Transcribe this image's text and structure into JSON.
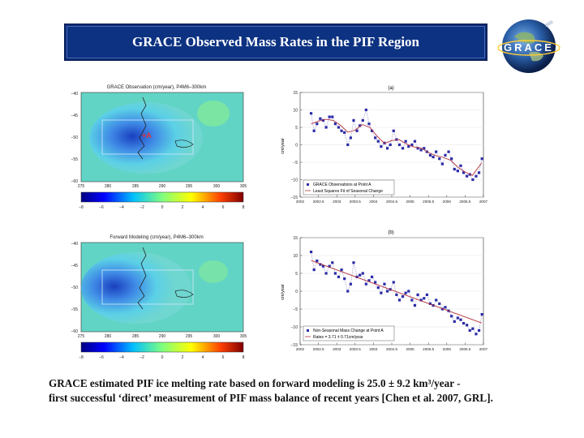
{
  "slide": {
    "title": "GRACE Observed Mass Rates in the PIF Region",
    "logo_text": "GRACE",
    "caption_line1": "GRACE estimated PIF ice melting rate based on forward modeling is 25.0 ± 9.2 km³/year -",
    "caption_line2": "first successful ‘direct’ measurement of PIF mass balance of recent years [Chen et al. 2007, GRL]."
  },
  "maps": {
    "top_title": "GRACE Observation (cm/year), P4M6–300km",
    "bottom_title": "Forward Modeling (cm/year), P4M6–300km",
    "point_label": "+A",
    "x_ticks": [
      "275",
      "280",
      "285",
      "290",
      "295",
      "300",
      "305"
    ],
    "y_ticks": [
      "−40",
      "−45",
      "−50",
      "−55",
      "−60"
    ],
    "colorbar_ticks": [
      "−8",
      "−6",
      "−4",
      "−2",
      "0",
      "2",
      "4",
      "6",
      "8"
    ]
  },
  "colors": {
    "title_bg": "#0d3282",
    "series_marker": "#2b2ba8",
    "fit_line": "#b0303a"
  },
  "chart_data": [
    {
      "type": "line",
      "panel_label": "(a)",
      "ylabel": "cm/year",
      "xlim": [
        2002,
        2007
      ],
      "ylim": [
        -15,
        15
      ],
      "x_ticks": [
        "2002",
        "2002.5",
        "2003",
        "2003.5",
        "2004",
        "2004.5",
        "2005",
        "2005.5",
        "2006",
        "2006.5",
        "2007"
      ],
      "y_ticks": [
        "15",
        "10",
        "5",
        "0",
        "−5",
        "−10",
        "−15"
      ],
      "legend": [
        "GRACE Observations at Point A",
        "Least Squares Fit of Seasonal Change"
      ],
      "series": [
        {
          "name": "GRACE Observations at Point A",
          "x": [
            2002.3,
            2002.38,
            2002.46,
            2002.55,
            2002.63,
            2002.71,
            2002.8,
            2002.88,
            2002.96,
            2003.05,
            2003.13,
            2003.21,
            2003.3,
            2003.38,
            2003.46,
            2003.55,
            2003.63,
            2003.71,
            2003.8,
            2003.88,
            2003.96,
            2004.05,
            2004.13,
            2004.21,
            2004.3,
            2004.38,
            2004.46,
            2004.55,
            2004.63,
            2004.71,
            2004.8,
            2004.88,
            2004.96,
            2005.05,
            2005.13,
            2005.21,
            2005.3,
            2005.38,
            2005.46,
            2005.55,
            2005.63,
            2005.71,
            2005.8,
            2005.88,
            2005.96,
            2006.05,
            2006.13,
            2006.21,
            2006.3,
            2006.38,
            2006.46,
            2006.55,
            2006.63,
            2006.71,
            2006.8,
            2006.88,
            2006.96
          ],
          "values": [
            9,
            4,
            6,
            7.5,
            7,
            5,
            8,
            8,
            6,
            5,
            4,
            3.5,
            0,
            2,
            7,
            4,
            5.5,
            7,
            10,
            6,
            4,
            2,
            1,
            -0.5,
            0.5,
            -1,
            0,
            4,
            1.5,
            0,
            -1,
            1,
            -0.5,
            0,
            1,
            -1,
            -1.5,
            -1,
            -2,
            -3,
            -3.5,
            -2,
            -4,
            -5.5,
            -3,
            -2,
            -4,
            -7,
            -7.5,
            -6,
            -8,
            -9,
            -8.5,
            -10,
            -9,
            -8,
            -4
          ]
        },
        {
          "name": "Least Squares Fit of Seasonal Change",
          "x": [
            2002.3,
            2002.5,
            2002.7,
            2002.9,
            2003.1,
            2003.3,
            2003.5,
            2003.7,
            2003.9,
            2004.1,
            2004.3,
            2004.5,
            2004.7,
            2004.9,
            2005.1,
            2005.3,
            2005.5,
            2005.7,
            2005.9,
            2006.1,
            2006.3,
            2006.5,
            2006.7,
            2006.95
          ],
          "values": [
            6,
            6.8,
            7.3,
            7,
            5.6,
            3.6,
            4.2,
            5.8,
            5,
            2.5,
            0.4,
            1.2,
            1.5,
            0.2,
            -0.6,
            -0.9,
            -2.2,
            -3.1,
            -3.6,
            -4.4,
            -6.4,
            -7.8,
            -8.8,
            -5.2
          ]
        }
      ]
    },
    {
      "type": "line",
      "panel_label": "(b)",
      "ylabel": "cm/year",
      "xlim": [
        2002,
        2007
      ],
      "ylim": [
        -15,
        15
      ],
      "x_ticks": [
        "2002",
        "2002.5",
        "2003",
        "2003.5",
        "2004",
        "2004.5",
        "2005",
        "2005.5",
        "2006",
        "2006.5",
        "2007"
      ],
      "y_ticks": [
        "15",
        "10",
        "5",
        "0",
        "−5",
        "−10",
        "−15"
      ],
      "legend": [
        "Non-Seasonal Mass Change at Point A",
        "Rates = 3.71 ± 0.71cm/year"
      ],
      "series": [
        {
          "name": "Non-Seasonal Mass Change at Point A",
          "x": [
            2002.3,
            2002.38,
            2002.46,
            2002.55,
            2002.63,
            2002.71,
            2002.8,
            2002.88,
            2002.96,
            2003.05,
            2003.13,
            2003.21,
            2003.3,
            2003.38,
            2003.46,
            2003.55,
            2003.63,
            2003.71,
            2003.8,
            2003.88,
            2003.96,
            2004.05,
            2004.13,
            2004.21,
            2004.3,
            2004.38,
            2004.46,
            2004.55,
            2004.63,
            2004.71,
            2004.8,
            2004.88,
            2004.96,
            2005.05,
            2005.13,
            2005.21,
            2005.3,
            2005.38,
            2005.46,
            2005.55,
            2005.63,
            2005.71,
            2005.8,
            2005.88,
            2005.96,
            2006.05,
            2006.13,
            2006.21,
            2006.3,
            2006.38,
            2006.46,
            2006.55,
            2006.63,
            2006.71,
            2006.8,
            2006.88,
            2006.96
          ],
          "values": [
            11,
            6,
            8.5,
            7.5,
            7,
            5,
            7,
            8,
            5,
            4,
            6,
            3.5,
            0,
            2,
            8,
            4,
            4.5,
            5,
            2,
            3,
            4,
            2.5,
            1,
            -0.5,
            2,
            0,
            0.5,
            2.5,
            -1,
            -2.5,
            -1.5,
            -0.5,
            0,
            -2.5,
            -4,
            -1,
            -2.5,
            -2,
            -1,
            -3.5,
            -4,
            -2.5,
            -3.5,
            -5,
            -4.5,
            -5.5,
            -7,
            -8.5,
            -7.5,
            -8,
            -9,
            -9.5,
            -11,
            -10.5,
            -12,
            -11,
            -6.5
          ]
        },
        {
          "name": "Rates = 3.71 ± 0.71cm/year",
          "x": [
            2002.3,
            2006.95
          ],
          "values": [
            8.6,
            -8.9
          ]
        }
      ]
    }
  ]
}
